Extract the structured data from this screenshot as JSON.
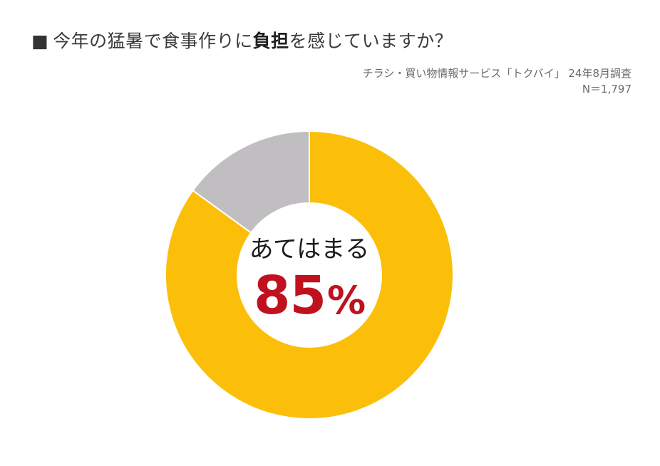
{
  "title": {
    "bullet": "■",
    "before": "今年の猛暑で食事作りに",
    "emphasis": "負担",
    "after": "を感じていますか？"
  },
  "source": {
    "line1": "チラシ・買い物情報サービス「トクバイ」 24年8月調査",
    "line2": "N＝1,797"
  },
  "chart_data": {
    "type": "pie",
    "variant": "donut",
    "title": "今年の猛暑で食事作りに負担を感じていますか？",
    "slices": [
      {
        "label": "あてはまる",
        "value": 85,
        "color": "#FBBF0A"
      },
      {
        "label": "",
        "value": 15,
        "color": "#C0BEC0"
      }
    ],
    "center_label": "あてはまる",
    "center_value": "85",
    "center_unit": "%",
    "legend": "none"
  },
  "colors": {
    "accent": "#FBBF0A",
    "secondary": "#C0BEC0",
    "highlight": "#C0121E"
  }
}
